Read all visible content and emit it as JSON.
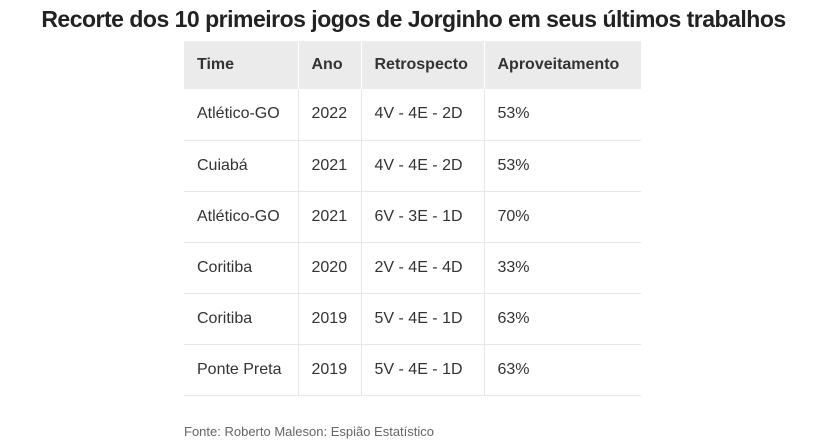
{
  "title": "Recorte dos 10 primeiros jogos de Jorginho em seus últimos trabalhos",
  "table": {
    "headers": [
      "Time",
      "Ano",
      "Retrospecto",
      "Aproveitamento"
    ],
    "rows": [
      [
        "Atlético-GO",
        "2022",
        "4V - 4E - 2D",
        "53%"
      ],
      [
        "Cuiabá",
        "2021",
        "4V - 4E - 2D",
        "53%"
      ],
      [
        "Atlético-GO",
        "2021",
        "6V - 3E - 1D",
        "70%"
      ],
      [
        "Coritiba",
        "2020",
        "2V - 4E - 4D",
        "33%"
      ],
      [
        "Coritiba",
        "2019",
        "5V - 4E - 1D",
        "63%"
      ],
      [
        "Ponte Preta",
        "2019",
        "5V - 4E - 1D",
        "63%"
      ]
    ]
  },
  "source": "Fonte: Roberto Maleson: Espião Estatístico",
  "colors": {
    "header_bg": "#ebebeb",
    "text": "#333333",
    "row_border": "#e6e6e6",
    "source_text": "#666666"
  }
}
